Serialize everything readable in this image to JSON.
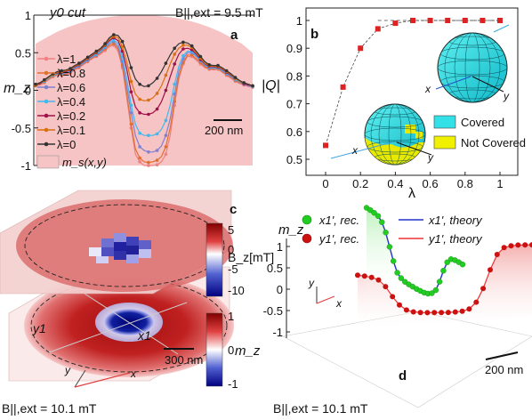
{
  "chart_data": [
    {
      "panel": "a",
      "type": "line",
      "panel_label": "a",
      "title": "y0 cut",
      "field_label": "B||,ext = 9.5 mT",
      "ylabel": "m_z",
      "ylim": [
        -1,
        1
      ],
      "yticks": [
        "1",
        "0.5",
        "0",
        "-0.5",
        "-1"
      ],
      "scalebar": "200 nm",
      "x": [
        0,
        2,
        4,
        6,
        8,
        10,
        12,
        14,
        16,
        18,
        20,
        22,
        24,
        26,
        28,
        30,
        32,
        34,
        36,
        38,
        40,
        42,
        44,
        46,
        48,
        50,
        52,
        54,
        56,
        58,
        60,
        62,
        64,
        66,
        68,
        70,
        72,
        74,
        76,
        78,
        80,
        82,
        84,
        86,
        88,
        90,
        92,
        94,
        96,
        98,
        100
      ],
      "series": [
        {
          "name": "λ=1",
          "color": "#f08080",
          "values": [
            0.06,
            0.07,
            0.1,
            0.14,
            0.18,
            0.2,
            0.2,
            0.21,
            0.23,
            0.27,
            0.3,
            0.34,
            0.38,
            0.42,
            0.45,
            0.48,
            0.53,
            0.58,
            0.6,
            0.52,
            0.3,
            -0.1,
            -0.5,
            -0.85,
            -0.95,
            -1.0,
            -1.0,
            -1.0,
            -0.99,
            -0.95,
            -0.85,
            -0.6,
            -0.2,
            0.15,
            0.35,
            0.45,
            0.45,
            0.4,
            0.35,
            0.3,
            0.28,
            0.27,
            0.28,
            0.24,
            0.2,
            0.16,
            0.12,
            0.09,
            0.07,
            0.05,
            0.04
          ]
        },
        {
          "name": "λ=0.8",
          "color": "#e07030",
          "values": [
            0.06,
            0.08,
            0.11,
            0.15,
            0.19,
            0.21,
            0.21,
            0.22,
            0.24,
            0.28,
            0.31,
            0.35,
            0.39,
            0.43,
            0.46,
            0.5,
            0.55,
            0.6,
            0.62,
            0.55,
            0.33,
            -0.05,
            -0.45,
            -0.78,
            -0.9,
            -0.95,
            -0.96,
            -0.95,
            -0.93,
            -0.88,
            -0.75,
            -0.5,
            -0.15,
            0.18,
            0.37,
            0.47,
            0.47,
            0.42,
            0.37,
            0.31,
            0.29,
            0.28,
            0.29,
            0.25,
            0.21,
            0.17,
            0.13,
            0.1,
            0.08,
            0.06,
            0.05
          ]
        },
        {
          "name": "λ=0.6",
          "color": "#8080d0",
          "values": [
            0.07,
            0.09,
            0.12,
            0.16,
            0.2,
            0.22,
            0.22,
            0.23,
            0.25,
            0.29,
            0.32,
            0.36,
            0.4,
            0.44,
            0.47,
            0.51,
            0.57,
            0.62,
            0.65,
            0.58,
            0.38,
            0.05,
            -0.3,
            -0.6,
            -0.75,
            -0.8,
            -0.82,
            -0.82,
            -0.8,
            -0.74,
            -0.6,
            -0.38,
            -0.05,
            0.25,
            0.42,
            0.5,
            0.5,
            0.45,
            0.39,
            0.33,
            0.3,
            0.29,
            0.3,
            0.26,
            0.22,
            0.18,
            0.14,
            0.11,
            0.08,
            0.06,
            0.05
          ]
        },
        {
          "name": "λ=0.4",
          "color": "#40b8f0",
          "values": [
            0.07,
            0.09,
            0.12,
            0.16,
            0.2,
            0.22,
            0.23,
            0.24,
            0.26,
            0.3,
            0.33,
            0.37,
            0.41,
            0.45,
            0.48,
            0.52,
            0.58,
            0.64,
            0.67,
            0.62,
            0.45,
            0.15,
            -0.2,
            -0.45,
            -0.57,
            -0.6,
            -0.6,
            -0.6,
            -0.58,
            -0.52,
            -0.4,
            -0.2,
            0.08,
            0.32,
            0.46,
            0.52,
            0.52,
            0.46,
            0.4,
            0.34,
            0.31,
            0.3,
            0.3,
            0.27,
            0.23,
            0.19,
            0.15,
            0.11,
            0.09,
            0.07,
            0.05
          ]
        },
        {
          "name": "λ=0.2",
          "color": "#a0104a",
          "values": [
            0.07,
            0.09,
            0.13,
            0.17,
            0.21,
            0.23,
            0.24,
            0.25,
            0.27,
            0.31,
            0.34,
            0.38,
            0.42,
            0.46,
            0.5,
            0.54,
            0.6,
            0.66,
            0.7,
            0.66,
            0.52,
            0.28,
            -0.02,
            -0.22,
            -0.3,
            -0.32,
            -0.32,
            -0.3,
            -0.25,
            -0.15,
            0.0,
            0.18,
            0.35,
            0.48,
            0.55,
            0.56,
            0.54,
            0.48,
            0.41,
            0.35,
            0.32,
            0.31,
            0.31,
            0.28,
            0.24,
            0.2,
            0.16,
            0.12,
            0.09,
            0.07,
            0.06
          ]
        },
        {
          "name": "λ=0.1",
          "color": "#d87010",
          "values": [
            0.07,
            0.1,
            0.13,
            0.17,
            0.21,
            0.24,
            0.25,
            0.26,
            0.28,
            0.32,
            0.35,
            0.39,
            0.43,
            0.47,
            0.51,
            0.55,
            0.61,
            0.68,
            0.72,
            0.7,
            0.58,
            0.38,
            0.12,
            -0.05,
            -0.12,
            -0.14,
            -0.13,
            -0.1,
            -0.04,
            0.06,
            0.2,
            0.35,
            0.48,
            0.56,
            0.6,
            0.6,
            0.57,
            0.5,
            0.43,
            0.36,
            0.33,
            0.32,
            0.32,
            0.29,
            0.25,
            0.21,
            0.16,
            0.12,
            0.1,
            0.08,
            0.06
          ]
        },
        {
          "name": "λ=0",
          "color": "#333333",
          "values": [
            0.08,
            0.1,
            0.14,
            0.18,
            0.22,
            0.25,
            0.26,
            0.27,
            0.29,
            0.33,
            0.36,
            0.4,
            0.44,
            0.48,
            0.52,
            0.56,
            0.62,
            0.7,
            0.74,
            0.73,
            0.65,
            0.5,
            0.3,
            0.15,
            0.08,
            0.05,
            0.06,
            0.1,
            0.16,
            0.25,
            0.36,
            0.47,
            0.56,
            0.62,
            0.64,
            0.63,
            0.59,
            0.52,
            0.45,
            0.38,
            0.34,
            0.33,
            0.33,
            0.3,
            0.26,
            0.22,
            0.17,
            0.13,
            0.1,
            0.08,
            0.06
          ]
        }
      ],
      "legend_extra": "m_s(x,y)",
      "shaded_profile": [
        0.62,
        0.7,
        0.78,
        0.84,
        0.89,
        0.93,
        0.96,
        0.98,
        0.995,
        1.0,
        1.0,
        0.995,
        0.98,
        0.96,
        0.93,
        0.89,
        0.84,
        0.78,
        0.7,
        0.62,
        0.5
      ]
    },
    {
      "panel": "b",
      "type": "scatter",
      "panel_label": "b",
      "xlabel": "λ",
      "ylabel": "|Q|",
      "xlim": [
        0,
        1
      ],
      "ylim": [
        0.5,
        1.0
      ],
      "xticks": [
        "0",
        "0.2",
        "0.4",
        "0.6",
        "0.8",
        "1"
      ],
      "yticks": [
        "0.5",
        "0.6",
        "0.7",
        "0.8",
        "0.9",
        "1"
      ],
      "x": [
        0,
        0.1,
        0.2,
        0.3,
        0.4,
        0.5,
        0.6,
        0.7,
        0.8,
        0.9,
        1.0
      ],
      "values": [
        0.55,
        0.76,
        0.9,
        0.97,
        0.99,
        1.0,
        1.0,
        1.0,
        1.0,
        1.0,
        1.0
      ],
      "reference_line": 1.0,
      "legend": [
        {
          "label": "Covered",
          "color": "#33e0e8"
        },
        {
          "label": "Not Covered",
          "color": "#f0f000"
        }
      ],
      "sphere_axis_labels": [
        "x",
        "y"
      ]
    },
    {
      "panel": "c",
      "type": "heatmap",
      "panel_label": "c",
      "upper_colorbar": {
        "label": "B_z[mT]",
        "ticks": [
          "5",
          "0",
          "-5",
          "-10"
        ]
      },
      "lower_colorbar": {
        "label": "m_z",
        "ticks": [
          "1",
          "0",
          "-1"
        ]
      },
      "line_labels": [
        "y1",
        "x1"
      ],
      "scalebar": "300 nm",
      "axis_labels": [
        "y",
        "x"
      ],
      "field_label": "B||,ext = 10.1 mT"
    },
    {
      "panel": "d",
      "type": "line",
      "panel_label": "d",
      "zlabel": "m_z",
      "zticks": [
        "1",
        "0.5",
        "0",
        "-0.5",
        "-1"
      ],
      "legend": [
        {
          "label": "x1', rec.",
          "color": "#22cc22"
        },
        {
          "label": "x1', theory",
          "color": "#2233cc"
        },
        {
          "label": "y1', rec.",
          "color": "#cc1111"
        },
        {
          "label": "y1', theory",
          "color": "#ee3333"
        }
      ],
      "axis_labels": [
        "y",
        "x"
      ],
      "scalebar": "200 nm",
      "field_label": "B||,ext = 10.1 mT",
      "x": [
        0,
        4,
        8,
        12,
        16,
        20,
        24,
        28,
        32,
        36,
        40,
        44,
        48,
        52,
        56,
        60,
        64,
        68,
        72,
        76,
        80,
        84,
        88,
        92,
        96,
        100
      ],
      "series": [
        {
          "name": "x1', rec.",
          "values": [
            0.95,
            0.95,
            0.93,
            0.9,
            0.75,
            0.45,
            0.0,
            -0.45,
            -0.8,
            -0.92,
            -0.97,
            -0.98,
            -0.98,
            -0.98,
            -0.97,
            -0.95,
            -0.9,
            -0.8,
            -0.6,
            -0.2,
            0.3,
            0.7,
            0.9,
            0.95,
            0.96,
            0.96
          ]
        },
        {
          "name": "y1', rec.",
          "values": [
            0.15,
            0.12,
            0.08,
            0.0,
            -0.2,
            -0.5,
            -0.75,
            -0.9,
            -0.96,
            -0.98,
            -0.99,
            -0.99,
            -0.99,
            -0.99,
            -0.98,
            -0.96,
            -0.9,
            -0.7,
            -0.3,
            0.25,
            0.7,
            0.9,
            0.95,
            0.97,
            0.97,
            0.97
          ]
        }
      ]
    }
  ]
}
